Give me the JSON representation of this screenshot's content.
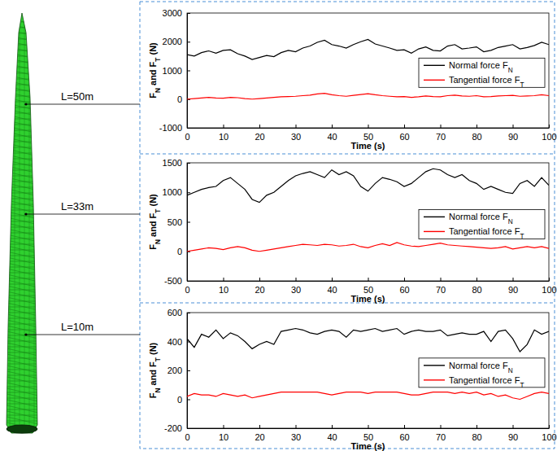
{
  "chart_data": [
    {
      "type": "line",
      "annotation": "L=50m",
      "xlabel": "Time (s)",
      "ylabel": "FN and FT (N)",
      "x": [
        0,
        2,
        4,
        6,
        8,
        10,
        12,
        14,
        16,
        18,
        20,
        22,
        24,
        26,
        28,
        30,
        32,
        34,
        36,
        38,
        40,
        42,
        44,
        46,
        48,
        50,
        52,
        54,
        56,
        58,
        60,
        62,
        64,
        66,
        68,
        70,
        72,
        74,
        76,
        78,
        80,
        82,
        84,
        86,
        88,
        90,
        92,
        94,
        96,
        98,
        100
      ],
      "xlim": [
        0,
        100
      ],
      "xticks": [
        0,
        10,
        20,
        30,
        40,
        50,
        60,
        70,
        80,
        90,
        100
      ],
      "ylim": [
        -1000,
        3000
      ],
      "yticks": [
        -1000,
        0,
        1000,
        2000,
        3000
      ],
      "legend": "right",
      "series": [
        {
          "name": "Normal force FN",
          "color": "#000000",
          "values": [
            1550,
            1500,
            1620,
            1680,
            1600,
            1700,
            1720,
            1580,
            1500,
            1380,
            1450,
            1520,
            1480,
            1620,
            1700,
            1650,
            1780,
            1850,
            1980,
            2050,
            1900,
            1850,
            1780,
            1900,
            2000,
            2080,
            1920,
            1850,
            1780,
            1700,
            1720,
            1600,
            1750,
            1820,
            1700,
            1680,
            1850,
            1900,
            1750,
            1780,
            1820,
            1650,
            1700,
            1800,
            1850,
            1900,
            1750,
            1800,
            1870,
            1980,
            1900
          ]
        },
        {
          "name": "Tangential force FT",
          "color": "#ff0000",
          "values": [
            0,
            20,
            40,
            60,
            40,
            30,
            60,
            50,
            20,
            0,
            20,
            40,
            60,
            80,
            90,
            100,
            120,
            140,
            180,
            200,
            150,
            120,
            100,
            130,
            160,
            190,
            150,
            120,
            100,
            80,
            90,
            60,
            80,
            110,
            90,
            80,
            120,
            140,
            110,
            100,
            120,
            80,
            90,
            110,
            120,
            130,
            100,
            110,
            120,
            150,
            120
          ]
        }
      ]
    },
    {
      "type": "line",
      "annotation": "L=33m",
      "xlabel": "Time (s)",
      "ylabel": "FN and FT (N)",
      "x": [
        0,
        2,
        4,
        6,
        8,
        10,
        12,
        14,
        16,
        18,
        20,
        22,
        24,
        26,
        28,
        30,
        32,
        34,
        36,
        38,
        40,
        42,
        44,
        46,
        48,
        50,
        52,
        54,
        56,
        58,
        60,
        62,
        64,
        66,
        68,
        70,
        72,
        74,
        76,
        78,
        80,
        82,
        84,
        86,
        88,
        90,
        92,
        94,
        96,
        98,
        100
      ],
      "xlim": [
        0,
        100
      ],
      "xticks": [
        0,
        10,
        20,
        30,
        40,
        50,
        60,
        70,
        80,
        90,
        100
      ],
      "ylim": [
        -500,
        1500
      ],
      "yticks": [
        -500,
        0,
        500,
        1000,
        1500
      ],
      "legend": "right",
      "series": [
        {
          "name": "Normal force FN",
          "color": "#000000",
          "values": [
            950,
            1000,
            1050,
            1080,
            1100,
            1200,
            1250,
            1150,
            1050,
            880,
            830,
            950,
            1000,
            1100,
            1200,
            1280,
            1320,
            1350,
            1300,
            1250,
            1380,
            1300,
            1350,
            1280,
            1100,
            1020,
            1150,
            1250,
            1220,
            1180,
            1100,
            1150,
            1250,
            1350,
            1400,
            1380,
            1300,
            1250,
            1300,
            1200,
            1150,
            1050,
            1100,
            1050,
            1000,
            980,
            1150,
            1200,
            1100,
            1250,
            1120
          ]
        },
        {
          "name": "Tangential force FT",
          "color": "#ff0000",
          "values": [
            0,
            20,
            40,
            60,
            50,
            30,
            60,
            80,
            60,
            20,
            0,
            20,
            40,
            60,
            80,
            100,
            120,
            110,
            100,
            120,
            110,
            90,
            100,
            120,
            80,
            60,
            100,
            130,
            100,
            150,
            110,
            90,
            80,
            100,
            120,
            140,
            110,
            100,
            90,
            80,
            70,
            60,
            50,
            60,
            80,
            40,
            60,
            80,
            60,
            80,
            50
          ]
        }
      ]
    },
    {
      "type": "line",
      "annotation": "L=10m",
      "xlabel": "Time (s)",
      "ylabel": "FN and FT (N)",
      "x": [
        0,
        2,
        4,
        6,
        8,
        10,
        12,
        14,
        16,
        18,
        20,
        22,
        24,
        26,
        28,
        30,
        32,
        34,
        36,
        38,
        40,
        42,
        44,
        46,
        48,
        50,
        52,
        54,
        56,
        58,
        60,
        62,
        64,
        66,
        68,
        70,
        72,
        74,
        76,
        78,
        80,
        82,
        84,
        86,
        88,
        90,
        92,
        94,
        96,
        98,
        100
      ],
      "xlim": [
        0,
        100
      ],
      "xticks": [
        0,
        10,
        20,
        30,
        40,
        50,
        60,
        70,
        80,
        90,
        100
      ],
      "ylim": [
        -200,
        600
      ],
      "yticks": [
        -200,
        0,
        200,
        400,
        600
      ],
      "legend": "right",
      "series": [
        {
          "name": "Normal force FN",
          "color": "#000000",
          "values": [
            420,
            360,
            450,
            430,
            480,
            420,
            460,
            440,
            400,
            350,
            380,
            400,
            380,
            470,
            480,
            490,
            480,
            460,
            450,
            470,
            480,
            470,
            430,
            480,
            470,
            480,
            490,
            470,
            480,
            490,
            450,
            470,
            480,
            470,
            470,
            480,
            440,
            450,
            460,
            450,
            450,
            470,
            400,
            470,
            480,
            420,
            330,
            380,
            480,
            450,
            470
          ]
        },
        {
          "name": "Tangential force FT",
          "color": "#ff0000",
          "values": [
            20,
            40,
            30,
            30,
            20,
            40,
            30,
            20,
            30,
            10,
            20,
            30,
            40,
            50,
            50,
            50,
            50,
            50,
            50,
            40,
            30,
            40,
            50,
            50,
            50,
            40,
            50,
            50,
            50,
            50,
            40,
            30,
            30,
            40,
            50,
            50,
            50,
            40,
            50,
            40,
            50,
            30,
            40,
            20,
            30,
            10,
            0,
            20,
            40,
            50,
            40
          ]
        }
      ]
    }
  ]
}
